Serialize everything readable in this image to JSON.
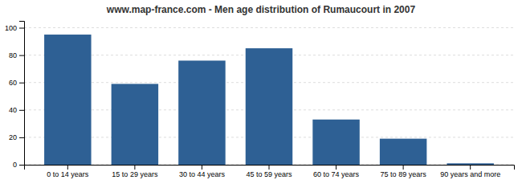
{
  "chart_data": {
    "type": "bar",
    "title": "www.map-france.com - Men age distribution of Rumaucourt in 2007",
    "categories": [
      "0 to 14 years",
      "15 to 29 years",
      "30 to 44 years",
      "45 to 59 years",
      "60 to 74 years",
      "75 to 89 years",
      "90 years and more"
    ],
    "values": [
      95,
      59,
      76,
      85,
      33,
      19,
      1
    ],
    "color": "#2e6094",
    "ylim": [
      0,
      105
    ],
    "yticks": [
      0,
      20,
      40,
      60,
      80,
      100
    ],
    "grid": true
  }
}
